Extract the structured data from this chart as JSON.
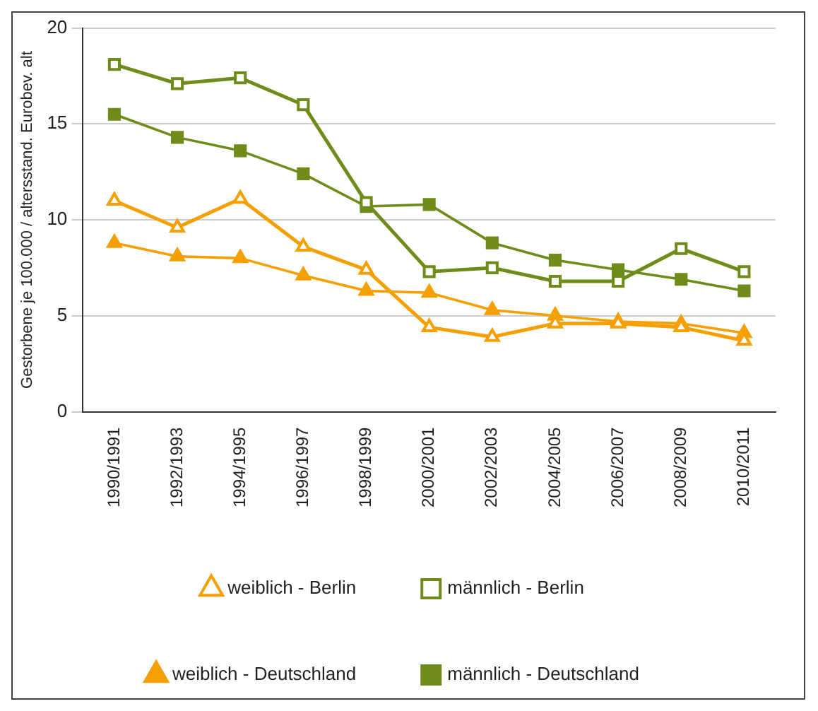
{
  "chart_data": {
    "type": "line",
    "ylabel": "Gestorbene je 100.000 / altersstand. Eurobev. alt",
    "categories": [
      "1990/1991",
      "1992/1993",
      "1994/1995",
      "1996/1997",
      "1998/1999",
      "2000/2001",
      "2002/2003",
      "2004/2005",
      "2006/2007",
      "2008/2009",
      "2010/2011"
    ],
    "series": [
      {
        "name": "weiblich - Berlin",
        "color": "#f5a000",
        "marker": "triangle",
        "values": [
          11.0,
          9.6,
          11.1,
          8.6,
          7.4,
          4.4,
          3.9,
          4.6,
          4.6,
          4.4,
          3.7
        ]
      },
      {
        "name": "männlich - Berlin",
        "color": "#6f8c1a",
        "marker": "square",
        "values": [
          18.1,
          17.1,
          17.4,
          16.0,
          10.9,
          7.3,
          7.5,
          6.8,
          6.8,
          8.5,
          7.3
        ]
      },
      {
        "name": "weiblich - Deutschland",
        "color": "#f5a000",
        "marker": "triangle",
        "values": [
          8.8,
          8.1,
          8.0,
          7.1,
          6.3,
          6.2,
          5.3,
          5.0,
          4.7,
          4.6,
          4.1
        ]
      },
      {
        "name": "männlich - Deutschland",
        "color": "#6f8c1a",
        "marker": "square",
        "values": [
          15.5,
          14.3,
          13.6,
          12.4,
          10.7,
          10.8,
          8.8,
          7.9,
          7.4,
          6.9,
          6.3
        ]
      }
    ],
    "ylim": [
      0,
      20
    ],
    "yticks": [
      0,
      5,
      10,
      15,
      20
    ],
    "grid": "y",
    "legend": "bottom",
    "line_style": "solid"
  }
}
